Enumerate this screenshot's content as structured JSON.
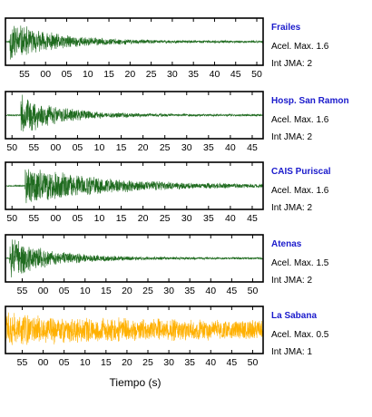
{
  "chart_data": {
    "type": "line",
    "xlabel": "Tiempo (s)",
    "colors": {
      "green": "#1f6b1f",
      "orange": "#ffb000",
      "station_label": "#1a1acc"
    },
    "panels": [
      {
        "station": "Frailes",
        "acel_label": "Acel. Max. 1.6",
        "int_label": "Int JMA: 2",
        "acel_max": 1.6,
        "int_jma": 2,
        "color": "#1f6b1f",
        "x_range_seconds": [
          50.5,
          111.5
        ],
        "ticks": [
          "55",
          "00",
          "05",
          "10",
          "15",
          "20",
          "25",
          "30",
          "35",
          "40",
          "45",
          "50"
        ],
        "tick_seconds": [
          55,
          60,
          65,
          70,
          75,
          80,
          85,
          90,
          95,
          100,
          105,
          110
        ],
        "onset": 51.5,
        "decay": 11,
        "seed": 11
      },
      {
        "station": "Hosp. San Ramon",
        "acel_label": "Acel. Max. 1.6",
        "int_label": "Int JMA: 2",
        "acel_max": 1.6,
        "int_jma": 2,
        "color": "#1f6b1f",
        "x_range_seconds": [
          48.5,
          107.5
        ],
        "ticks": [
          "50",
          "55",
          "00",
          "05",
          "10",
          "15",
          "20",
          "25",
          "30",
          "35",
          "40",
          "45"
        ],
        "tick_seconds": [
          50,
          55,
          60,
          65,
          70,
          75,
          80,
          85,
          90,
          95,
          100,
          105
        ],
        "onset": 52,
        "decay": 9,
        "seed": 23
      },
      {
        "station": "CAIS Puriscal",
        "acel_label": "Acel. Max. 1.6",
        "int_label": "Int JMA: 2",
        "acel_max": 1.6,
        "int_jma": 2,
        "color": "#1f6b1f",
        "x_range_seconds": [
          48.5,
          107.5
        ],
        "ticks": [
          "50",
          "55",
          "00",
          "05",
          "10",
          "15",
          "20",
          "25",
          "30",
          "35",
          "40",
          "45"
        ],
        "tick_seconds": [
          50,
          55,
          60,
          65,
          70,
          75,
          80,
          85,
          90,
          95,
          100,
          105
        ],
        "onset": 53,
        "decay": 18,
        "seed": 37
      },
      {
        "station": "Atenas",
        "acel_label": "Acel. Max. 1.5",
        "int_label": "Int JMA: 2",
        "acel_max": 1.5,
        "int_jma": 2,
        "color": "#1f6b1f",
        "x_range_seconds": [
          51,
          112.5
        ],
        "ticks": [
          "55",
          "00",
          "05",
          "10",
          "15",
          "20",
          "25",
          "30",
          "35",
          "40",
          "45",
          "50"
        ],
        "tick_seconds": [
          55,
          60,
          65,
          70,
          75,
          80,
          85,
          90,
          95,
          100,
          105,
          110
        ],
        "onset": 52,
        "decay": 10,
        "seed": 51
      },
      {
        "station": "La Sabana",
        "acel_label": "Acel. Max. 0.5",
        "int_label": "Int JMA: 1",
        "acel_max": 0.5,
        "int_jma": 1,
        "color": "#ffb000",
        "x_range_seconds": [
          51,
          112.5
        ],
        "ticks": [
          "55",
          "00",
          "05",
          "10",
          "15",
          "20",
          "25",
          "30",
          "35",
          "40",
          "45",
          "50"
        ],
        "tick_seconds": [
          55,
          60,
          65,
          70,
          75,
          80,
          85,
          90,
          95,
          100,
          105,
          110
        ],
        "onset": 51,
        "decay": 60,
        "seed": 73
      }
    ]
  }
}
